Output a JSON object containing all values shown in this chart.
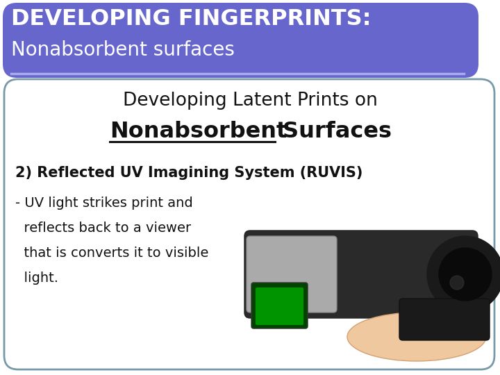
{
  "bg_color": "#ffffff",
  "header_bg_color": "#6666cc",
  "header_text_line1": "DEVELOPING FINGERPRINTS:",
  "header_text_line2": "Nonabsorbent surfaces",
  "header_text_color": "#ffffff",
  "header_underline_color": "#aaaaee",
  "body_bg_color": "#ffffff",
  "body_border_color": "#7799aa",
  "subtitle_line1": "Developing Latent Prints on",
  "subtitle_line2_underline": "Nonabsorbent",
  "subtitle_line2_normal": " Surfaces",
  "subtitle_color": "#111111",
  "section_title": "2) Reflected UV Imagining System (RUVIS)",
  "body_lines": [
    "- UV light strikes print and",
    "  reflects back to a viewer",
    "  that is converts it to visible",
    "  light."
  ],
  "body_text_color": "#111111",
  "figsize": [
    7.2,
    5.4
  ],
  "dpi": 100
}
